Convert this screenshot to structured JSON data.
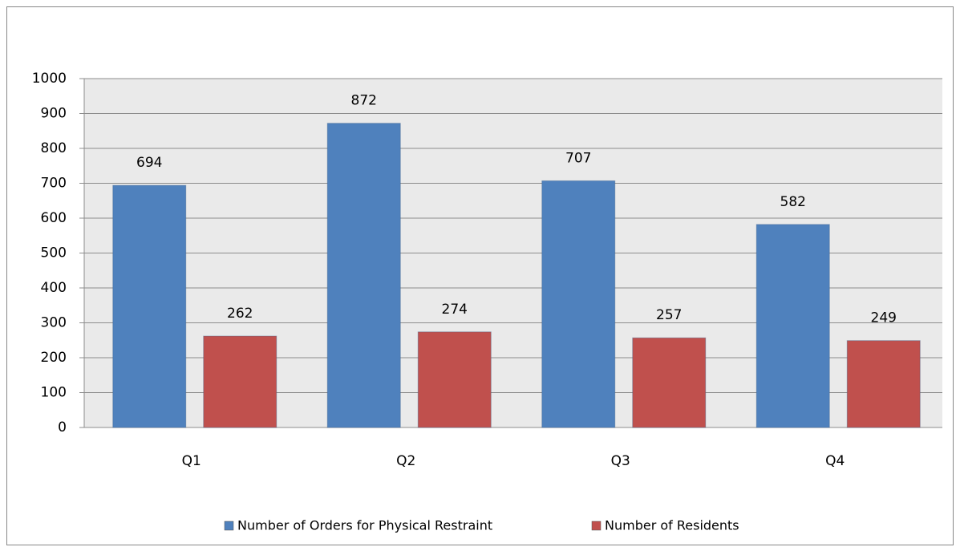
{
  "chart_data": {
    "type": "bar",
    "categories": [
      "Q1",
      "Q2",
      "Q3",
      "Q4"
    ],
    "series": [
      {
        "name": "Number of Orders for Physical Restraint",
        "color": "#4f81bd",
        "values": [
          694,
          872,
          707,
          582
        ]
      },
      {
        "name": "Number of Residents",
        "color": "#c0504d",
        "values": [
          262,
          274,
          257,
          249
        ]
      }
    ],
    "ylim": [
      0,
      1000
    ],
    "yticks": [
      0,
      100,
      200,
      300,
      400,
      500,
      600,
      700,
      800,
      900,
      1000
    ],
    "grid": true,
    "legend": "bottom"
  }
}
